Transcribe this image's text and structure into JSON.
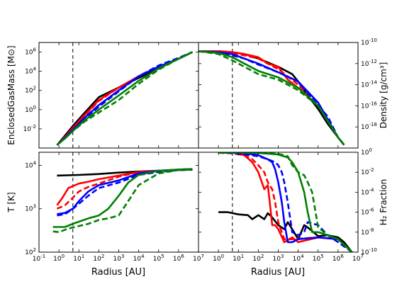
{
  "figure": {
    "xlabel": "Radius [AU]"
  },
  "colors": {
    "red": "#ff0000",
    "blue": "#0000ff",
    "green": "#008000",
    "black": "#000000"
  },
  "chart_data": [
    {
      "id": "mass",
      "type": "line",
      "panel": "top-left",
      "ylabel": "EnclosedGasMass [M⊙]",
      "xscale": "log",
      "yscale": "log",
      "xlim": [
        0.1,
        10000000
      ],
      "ylim": [
        0.0001,
        10000000
      ],
      "yticks": [
        "10^-2",
        "10^0",
        "10^2",
        "10^4",
        "10^6"
      ],
      "xticks": [],
      "vline_x": 5,
      "series": [
        {
          "color": "black",
          "style": "solid",
          "x": [
            0.8,
            2,
            5,
            20,
            100,
            1000,
            10000,
            100000,
            1000000,
            5000000
          ],
          "y": [
            0.0002,
            0.002,
            0.02,
            0.5,
            20,
            200,
            2000,
            20000,
            200000,
            1000000
          ]
        },
        {
          "color": "red",
          "style": "solid",
          "x": [
            0.8,
            2,
            5,
            20,
            100,
            1000,
            10000,
            100000,
            1000000,
            5000000
          ],
          "y": [
            0.0002,
            0.0015,
            0.012,
            0.3,
            10,
            200,
            3000,
            30000,
            200000,
            1000000
          ]
        },
        {
          "color": "red",
          "style": "dashed",
          "x": [
            0.8,
            2,
            5,
            20,
            100,
            1000,
            10000,
            100000,
            1000000,
            5000000
          ],
          "y": [
            0.0002,
            0.0015,
            0.012,
            0.25,
            8,
            200,
            3000,
            30000,
            200000,
            1000000
          ]
        },
        {
          "color": "blue",
          "style": "solid",
          "x": [
            0.8,
            2,
            5,
            20,
            100,
            1000,
            10000,
            100000,
            1000000,
            5000000
          ],
          "y": [
            0.0002,
            0.0012,
            0.008,
            0.15,
            3,
            100,
            3000,
            30000,
            200000,
            1000000
          ]
        },
        {
          "color": "blue",
          "style": "dashed",
          "x": [
            0.8,
            2,
            5,
            20,
            100,
            1000,
            10000,
            100000,
            1000000,
            5000000
          ],
          "y": [
            0.0002,
            0.0012,
            0.008,
            0.12,
            2,
            80,
            3000,
            40000,
            250000,
            1000000
          ]
        },
        {
          "color": "green",
          "style": "solid",
          "x": [
            0.8,
            2,
            5,
            20,
            100,
            1000,
            10000,
            100000,
            1000000,
            5000000
          ],
          "y": [
            0.0002,
            0.001,
            0.006,
            0.08,
            1,
            30,
            1000,
            20000,
            200000,
            1000000
          ]
        },
        {
          "color": "green",
          "style": "dashed",
          "x": [
            0.8,
            2,
            5,
            20,
            100,
            1000,
            10000,
            100000,
            1000000,
            5000000
          ],
          "y": [
            0.0002,
            0.001,
            0.006,
            0.06,
            0.5,
            10,
            500,
            15000,
            200000,
            1000000
          ]
        }
      ]
    },
    {
      "id": "density",
      "type": "line",
      "panel": "top-right",
      "ylabel": "Density [g/cm³]",
      "xscale": "log",
      "yscale": "log",
      "xlim": [
        0.1,
        10000000
      ],
      "ylim": [
        1e-20,
        1e-10
      ],
      "yticks": [
        "10^-10",
        "10^-12",
        "10^-14",
        "10^-16",
        "10^-18"
      ],
      "xticks": [],
      "vline_x": 5,
      "series": [
        {
          "color": "black",
          "style": "solid",
          "x": [
            0.1,
            1,
            5,
            20,
            100,
            1000,
            5000,
            10000,
            30000,
            100000,
            300000,
            1000000,
            2000000
          ],
          "y": [
            1.5e-11,
            1.5e-11,
            1.2e-11,
            8e-12,
            3e-12,
            5e-13,
            1e-13,
            2e-14,
            1e-15,
            5e-17,
            2e-18,
            1e-19,
            2e-20
          ]
        },
        {
          "color": "red",
          "style": "solid",
          "x": [
            0.1,
            1,
            5,
            20,
            100,
            300,
            1000,
            3000,
            10000,
            100000,
            1000000,
            2000000
          ],
          "y": [
            1.5e-11,
            1.5e-11,
            1.2e-11,
            8e-12,
            4e-12,
            1e-12,
            5e-13,
            3e-14,
            5e-15,
            1e-16,
            1e-19,
            2e-20
          ]
        },
        {
          "color": "red",
          "style": "dashed",
          "x": [
            0.1,
            1,
            5,
            20,
            100,
            1000,
            10000,
            100000,
            1000000,
            2000000
          ],
          "y": [
            1.5e-11,
            1.4e-11,
            1e-11,
            6e-12,
            3e-12,
            3e-13,
            1e-14,
            1e-16,
            1e-19,
            2e-20
          ]
        },
        {
          "color": "blue",
          "style": "solid",
          "x": [
            0.1,
            1,
            5,
            20,
            100,
            1000,
            10000,
            100000,
            1000000,
            2000000
          ],
          "y": [
            1.5e-11,
            1.2e-11,
            8e-12,
            3e-12,
            1e-12,
            1.5e-13,
            2e-14,
            2e-16,
            1e-19,
            2e-20
          ]
        },
        {
          "color": "blue",
          "style": "dashed",
          "x": [
            0.1,
            1,
            5,
            20,
            100,
            1000,
            10000,
            100000,
            300000,
            1000000,
            2000000
          ],
          "y": [
            1.5e-11,
            1e-11,
            6e-12,
            3e-12,
            8e-13,
            1.5e-13,
            2e-14,
            1e-16,
            1e-17,
            1e-19,
            2e-20
          ]
        },
        {
          "color": "green",
          "style": "solid",
          "x": [
            0.1,
            1,
            5,
            20,
            100,
            1000,
            10000,
            100000,
            1000000,
            2000000
          ],
          "y": [
            1.5e-11,
            1e-11,
            4e-12,
            1e-12,
            2e-13,
            5e-14,
            5e-15,
            1e-16,
            1e-19,
            2e-20
          ]
        },
        {
          "color": "green",
          "style": "dashed",
          "x": [
            0.1,
            1,
            5,
            20,
            100,
            1000,
            10000,
            100000,
            1000000,
            2000000
          ],
          "y": [
            1.5e-11,
            8e-12,
            2e-12,
            5e-13,
            1e-13,
            3e-14,
            3e-15,
            1e-16,
            1e-19,
            2e-20
          ]
        }
      ]
    },
    {
      "id": "temperature",
      "type": "line",
      "panel": "bottom-left",
      "ylabel": "T [K]",
      "xscale": "log",
      "yscale": "log",
      "xlim": [
        0.1,
        10000000
      ],
      "ylim": [
        100,
        20000
      ],
      "yticks": [
        "10^2",
        "10^3",
        "10^4"
      ],
      "xticks": [
        "10^-1",
        "10^0",
        "10^1",
        "10^2",
        "10^3",
        "10^4",
        "10^5",
        "10^6",
        "10^7"
      ],
      "vline_x": 5,
      "series": [
        {
          "color": "black",
          "style": "solid",
          "x": [
            0.8,
            10,
            100,
            1000,
            10000,
            100000,
            1000000,
            5000000
          ],
          "y": [
            5800,
            6000,
            6300,
            6800,
            7200,
            7500,
            7800,
            8000
          ]
        },
        {
          "color": "red",
          "style": "solid",
          "x": [
            0.8,
            1.5,
            3,
            10,
            30,
            100,
            1000,
            10000,
            100000,
            1000000,
            5000000
          ],
          "y": [
            1200,
            1800,
            3000,
            3800,
            4200,
            4800,
            5800,
            7000,
            7500,
            7800,
            8000
          ]
        },
        {
          "color": "red",
          "style": "dashed",
          "x": [
            0.8,
            2,
            5,
            10,
            30,
            100,
            1000,
            10000,
            100000,
            1000000,
            5000000
          ],
          "y": [
            1000,
            1200,
            1800,
            2500,
            3200,
            3800,
            5500,
            7000,
            7500,
            7800,
            8000
          ]
        },
        {
          "color": "blue",
          "style": "solid",
          "x": [
            0.8,
            2,
            5,
            10,
            30,
            100,
            1000,
            10000,
            100000,
            1000000,
            5000000
          ],
          "y": [
            750,
            800,
            1000,
            1500,
            2500,
            3500,
            4500,
            6500,
            7500,
            8000,
            8200
          ]
        },
        {
          "color": "blue",
          "style": "dashed",
          "x": [
            0.8,
            2,
            5,
            10,
            30,
            100,
            1000,
            10000,
            100000,
            1000000,
            5000000
          ],
          "y": [
            700,
            750,
            1000,
            1300,
            2000,
            3000,
            4000,
            6000,
            7000,
            7800,
            8000
          ]
        },
        {
          "color": "green",
          "style": "solid",
          "x": [
            0.5,
            2,
            5,
            30,
            100,
            300,
            1000,
            3000,
            10000,
            100000,
            1000000,
            5000000
          ],
          "y": [
            380,
            380,
            450,
            600,
            700,
            1000,
            2000,
            4000,
            6000,
            7500,
            8000,
            8200
          ]
        },
        {
          "color": "green",
          "style": "dashed",
          "x": [
            0.5,
            1,
            3,
            10,
            30,
            100,
            300,
            1000,
            3000,
            10000,
            100000,
            1000000,
            5000000
          ],
          "y": [
            300,
            290,
            350,
            400,
            450,
            550,
            600,
            700,
            1500,
            3500,
            6500,
            7800,
            8000
          ]
        }
      ]
    },
    {
      "id": "h2fraction",
      "type": "line",
      "panel": "bottom-right",
      "ylabel": "H₂ Fraction",
      "xscale": "log",
      "yscale": "log",
      "xlim": [
        0.1,
        10000000
      ],
      "ylim": [
        1e-10,
        1
      ],
      "yticks": [
        "10^0",
        "10^-2",
        "10^-4",
        "10^-6",
        "10^-8",
        "10^-10"
      ],
      "xticks": [
        "10^0",
        "10^1",
        "10^2",
        "10^3",
        "10^4",
        "10^5",
        "10^6",
        "10^7"
      ],
      "vline_x": 5,
      "series": [
        {
          "color": "black",
          "style": "solid",
          "x": [
            1,
            3,
            10,
            30,
            50,
            100,
            200,
            300,
            500,
            1000,
            2000,
            3000,
            5000,
            10000,
            20000,
            30000,
            100000,
            300000,
            1000000,
            2000000,
            5000000
          ],
          "y": [
            1e-06,
            1e-06,
            6e-07,
            5e-07,
            2e-07,
            5e-07,
            2e-07,
            8e-07,
            3e-07,
            5e-08,
            2e-08,
            1e-07,
            2e-08,
            2e-09,
            5e-08,
            3e-08,
            4e-09,
            5e-09,
            3e-09,
            1e-09,
            1e-10
          ]
        },
        {
          "color": "red",
          "style": "solid",
          "x": [
            1,
            5,
            20,
            50,
            100,
            200,
            300,
            400,
            500,
            700,
            1000,
            2000,
            5000,
            10000,
            100000,
            1000000,
            5000000
          ],
          "y": [
            0.9,
            0.9,
            0.5,
            0.1,
            0.01,
            0.0002,
            0.0005,
            3e-06,
            5e-08,
            5e-08,
            2e-08,
            1e-09,
            3e-09,
            1e-09,
            3e-09,
            2e-09,
            1e-10
          ]
        },
        {
          "color": "red",
          "style": "dashed",
          "x": [
            1,
            5,
            20,
            50,
            100,
            200,
            300,
            500,
            700,
            1000,
            2000,
            5000,
            100000,
            1000000,
            5000000
          ],
          "y": [
            0.9,
            0.8,
            0.5,
            0.2,
            0.05,
            0.01,
            0.001,
            0.0002,
            1e-05,
            1e-07,
            2e-09,
            2e-09,
            3e-09,
            2e-09,
            1e-10
          ]
        },
        {
          "color": "blue",
          "style": "solid",
          "x": [
            1,
            5,
            20,
            100,
            300,
            500,
            700,
            1000,
            1500,
            2000,
            3000,
            5000,
            10000,
            100000,
            1000000,
            5000000
          ],
          "y": [
            0.9,
            0.9,
            0.8,
            0.5,
            0.2,
            0.1,
            0.02,
            0.001,
            1e-05,
            1e-07,
            1e-09,
            1e-09,
            2e-09,
            3e-09,
            2e-09,
            1e-10
          ]
        },
        {
          "color": "blue",
          "style": "dashed",
          "x": [
            1,
            5,
            20,
            100,
            300,
            700,
            1000,
            1500,
            2000,
            3000,
            5000,
            10000,
            20000,
            30000,
            100000,
            300000,
            1000000,
            5000000
          ],
          "y": [
            0.9,
            0.8,
            0.6,
            0.4,
            0.2,
            0.1,
            0.05,
            0.01,
            0.001,
            1e-05,
            1e-08,
            5e-09,
            1e-08,
            1e-07,
            5e-08,
            5e-09,
            1e-09,
            1e-10
          ]
        },
        {
          "color": "green",
          "style": "solid",
          "x": [
            1,
            10,
            100,
            1000,
            3000,
            5000,
            10000,
            20000,
            30000,
            50000,
            100000,
            300000,
            1000000,
            5000000
          ],
          "y": [
            0.9,
            0.9,
            0.85,
            0.6,
            0.3,
            0.1,
            0.01,
            0.0001,
            1e-06,
            1e-08,
            1e-08,
            5e-09,
            2e-09,
            1e-10
          ]
        },
        {
          "color": "green",
          "style": "dashed",
          "x": [
            1,
            10,
            100,
            1000,
            3000,
            5000,
            10000,
            20000,
            30000,
            50000,
            100000,
            300000,
            1000000,
            5000000
          ],
          "y": [
            0.9,
            0.9,
            0.85,
            0.7,
            0.4,
            0.05,
            0.01,
            0.005,
            0.001,
            0.0001,
            3e-08,
            5e-09,
            2e-09,
            1e-10
          ]
        }
      ]
    }
  ]
}
